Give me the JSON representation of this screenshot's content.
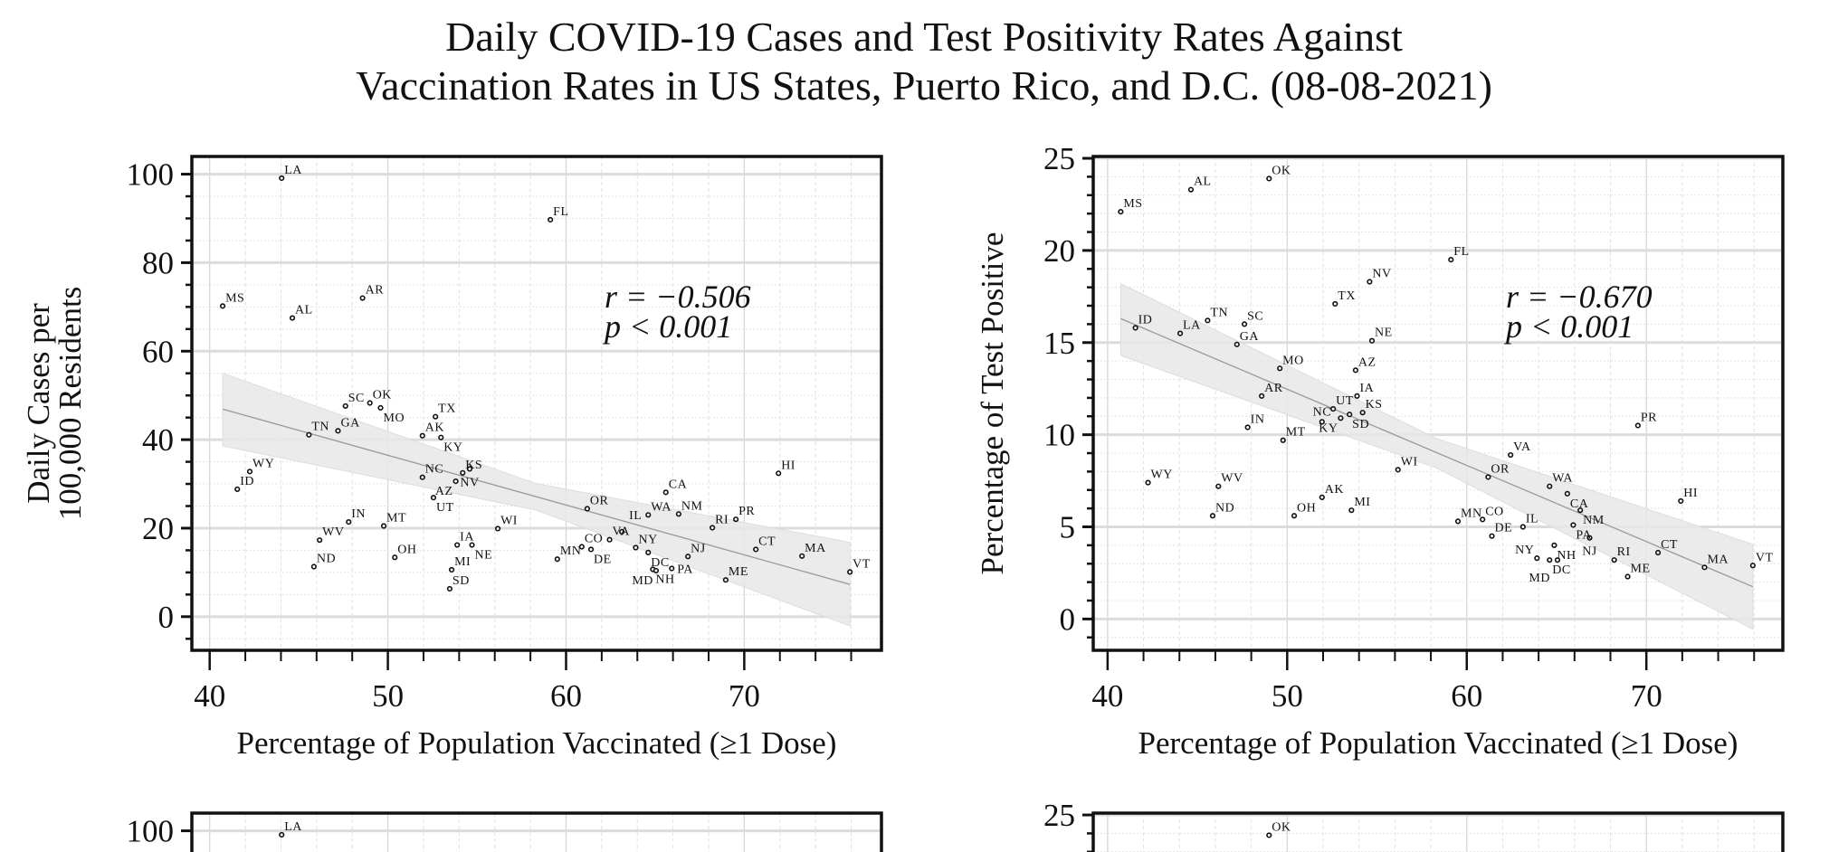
{
  "title_line1": "Daily COVID-19 Cases and Test Positivity Rates Against",
  "title_line2": "Vaccination Rates in US States, Puerto Rico, and D.C. (08-08-2021)",
  "chart_data": [
    {
      "type": "scatter",
      "xlabel": "Percentage of Population Vaccinated (≥1 Dose)",
      "ylabel": [
        "Daily Cases per",
        "100,000 Residents"
      ],
      "xlim": [
        39.0,
        77.7
      ],
      "ylim": [
        -7.6,
        104
      ],
      "xticks": [
        40,
        50,
        60,
        70
      ],
      "yticks": [
        0,
        20,
        40,
        60,
        80,
        100
      ],
      "grid": true,
      "stat_r": "r = −0.506",
      "stat_p": "p < 0.001",
      "fit": {
        "x": [
          40.73,
          58.3,
          75.93
        ],
        "y": [
          46.9,
          27.1,
          7.3
        ],
        "ci_low": [
          38.6,
          24.1,
          -2.1
        ],
        "ci_high": [
          55.0,
          30.1,
          16.8
        ]
      },
      "colors": {
        "points": "#111111",
        "fit": "#999999",
        "band": "#e8e8e8"
      },
      "points": [
        {
          "label": "LA",
          "x": 44.04,
          "y": 99.1
        },
        {
          "label": "FL",
          "x": 59.12,
          "y": 89.7
        },
        {
          "label": "MS",
          "x": 40.73,
          "y": 70.2
        },
        {
          "label": "AL",
          "x": 44.64,
          "y": 67.5
        },
        {
          "label": "AR",
          "x": 48.58,
          "y": 72.0
        },
        {
          "label": "SC",
          "x": 47.62,
          "y": 47.6
        },
        {
          "label": "OK",
          "x": 48.99,
          "y": 48.3
        },
        {
          "label": "MO",
          "x": 49.59,
          "y": 47.2
        },
        {
          "label": "TX",
          "x": 52.67,
          "y": 45.2
        },
        {
          "label": "TN",
          "x": 45.57,
          "y": 41.1
        },
        {
          "label": "GA",
          "x": 47.2,
          "y": 42.0
        },
        {
          "label": "AK",
          "x": 51.94,
          "y": 40.9
        },
        {
          "label": "KY",
          "x": 52.98,
          "y": 40.5
        },
        {
          "label": "WY",
          "x": 42.25,
          "y": 32.8
        },
        {
          "label": "ID",
          "x": 41.55,
          "y": 28.8
        },
        {
          "label": "NC",
          "x": 51.94,
          "y": 31.5
        },
        {
          "label": "KS",
          "x": 54.2,
          "y": 32.5
        },
        {
          "label": "NV",
          "x": 54.59,
          "y": 33.4
        },
        {
          "label": "AZ",
          "x": 53.81,
          "y": 30.6
        },
        {
          "label": "UT",
          "x": 52.56,
          "y": 26.9
        },
        {
          "label": "HI",
          "x": 71.92,
          "y": 32.4
        },
        {
          "label": "CA",
          "x": 65.6,
          "y": 28.1
        },
        {
          "label": "OR",
          "x": 61.19,
          "y": 24.4
        },
        {
          "label": "WA",
          "x": 64.61,
          "y": 23.0
        },
        {
          "label": "NM",
          "x": 66.32,
          "y": 23.2
        },
        {
          "label": "RI",
          "x": 68.21,
          "y": 20.1
        },
        {
          "label": "PR",
          "x": 69.53,
          "y": 22.0
        },
        {
          "label": "IN",
          "x": 47.8,
          "y": 21.4
        },
        {
          "label": "MT",
          "x": 49.77,
          "y": 20.5
        },
        {
          "label": "WI",
          "x": 56.17,
          "y": 19.9
        },
        {
          "label": "WV",
          "x": 46.17,
          "y": 17.3
        },
        {
          "label": "IA",
          "x": 53.89,
          "y": 16.2
        },
        {
          "label": "NE",
          "x": 54.72,
          "y": 16.2
        },
        {
          "label": "VA",
          "x": 62.44,
          "y": 17.4
        },
        {
          "label": "IL",
          "x": 63.13,
          "y": 19.2
        },
        {
          "label": "CO",
          "x": 60.88,
          "y": 15.8
        },
        {
          "label": "DE",
          "x": 61.4,
          "y": 15.2
        },
        {
          "label": "NY",
          "x": 63.91,
          "y": 15.6
        },
        {
          "label": "DC",
          "x": 64.61,
          "y": 14.5
        },
        {
          "label": "NJ",
          "x": 66.84,
          "y": 13.6
        },
        {
          "label": "CT",
          "x": 70.65,
          "y": 15.2
        },
        {
          "label": "MA",
          "x": 73.24,
          "y": 13.7
        },
        {
          "label": "ND",
          "x": 45.85,
          "y": 11.3
        },
        {
          "label": "OH",
          "x": 50.39,
          "y": 13.4
        },
        {
          "label": "MI",
          "x": 53.58,
          "y": 10.6
        },
        {
          "label": "SD",
          "x": 53.47,
          "y": 6.3
        },
        {
          "label": "MN",
          "x": 59.51,
          "y": 13.0
        },
        {
          "label": "NH",
          "x": 64.87,
          "y": 10.7
        },
        {
          "label": "MD",
          "x": 65.05,
          "y": 10.4
        },
        {
          "label": "PA",
          "x": 65.93,
          "y": 10.9
        },
        {
          "label": "ME",
          "x": 68.96,
          "y": 8.3
        },
        {
          "label": "VT",
          "x": 75.93,
          "y": 10.1
        }
      ]
    },
    {
      "type": "scatter",
      "xlabel": "Percentage of Population Vaccinated (≥1 Dose)",
      "ylabel": [
        "Percentage of Test Positive"
      ],
      "xlim": [
        39.2,
        77.6
      ],
      "ylim": [
        -1.7,
        25.1
      ],
      "xticks": [
        40,
        50,
        60,
        70
      ],
      "yticks": [
        0,
        5,
        10,
        15,
        20,
        25
      ],
      "grid": true,
      "stat_r": "r = −0.670",
      "stat_p": "p < 0.001",
      "fit": {
        "x": [
          40.73,
          58.3,
          75.93
        ],
        "y": [
          16.3,
          9.0,
          1.75
        ],
        "ci_low": [
          14.3,
          8.2,
          -0.55
        ],
        "ci_high": [
          18.2,
          9.8,
          4.05
        ]
      },
      "colors": {
        "points": "#111111",
        "fit": "#999999",
        "band": "#e8e8e8"
      },
      "points": [
        {
          "label": "OK",
          "x": 48.99,
          "y": 23.9
        },
        {
          "label": "AL",
          "x": 44.64,
          "y": 23.3
        },
        {
          "label": "MS",
          "x": 40.73,
          "y": 22.1
        },
        {
          "label": "FL",
          "x": 59.12,
          "y": 19.5
        },
        {
          "label": "NV",
          "x": 54.59,
          "y": 18.3
        },
        {
          "label": "TX",
          "x": 52.67,
          "y": 17.1
        },
        {
          "label": "TN",
          "x": 45.57,
          "y": 16.2
        },
        {
          "label": "SC",
          "x": 47.62,
          "y": 16.0
        },
        {
          "label": "ID",
          "x": 41.55,
          "y": 15.8
        },
        {
          "label": "LA",
          "x": 44.04,
          "y": 15.5
        },
        {
          "label": "GA",
          "x": 47.2,
          "y": 14.9
        },
        {
          "label": "NE",
          "x": 54.72,
          "y": 15.1
        },
        {
          "label": "MO",
          "x": 49.59,
          "y": 13.6
        },
        {
          "label": "AZ",
          "x": 53.81,
          "y": 13.5
        },
        {
          "label": "AR",
          "x": 48.58,
          "y": 12.1
        },
        {
          "label": "IA",
          "x": 53.89,
          "y": 12.1
        },
        {
          "label": "UT",
          "x": 52.56,
          "y": 11.4
        },
        {
          "label": "SD",
          "x": 53.47,
          "y": 11.1
        },
        {
          "label": "KY",
          "x": 52.98,
          "y": 10.9
        },
        {
          "label": "KS",
          "x": 54.2,
          "y": 11.2
        },
        {
          "label": "NC",
          "x": 51.94,
          "y": 10.7
        },
        {
          "label": "IN",
          "x": 47.8,
          "y": 10.4
        },
        {
          "label": "PR",
          "x": 69.53,
          "y": 10.5
        },
        {
          "label": "MT",
          "x": 49.77,
          "y": 9.7
        },
        {
          "label": "VA",
          "x": 62.44,
          "y": 8.9
        },
        {
          "label": "WI",
          "x": 56.17,
          "y": 8.1
        },
        {
          "label": "OR",
          "x": 61.19,
          "y": 7.7
        },
        {
          "label": "WY",
          "x": 42.25,
          "y": 7.4
        },
        {
          "label": "WV",
          "x": 46.17,
          "y": 7.2
        },
        {
          "label": "WA",
          "x": 64.61,
          "y": 7.2
        },
        {
          "label": "CA",
          "x": 65.6,
          "y": 6.8
        },
        {
          "label": "AK",
          "x": 51.94,
          "y": 6.6
        },
        {
          "label": "HI",
          "x": 71.92,
          "y": 6.4
        },
        {
          "label": "ND",
          "x": 45.85,
          "y": 5.6
        },
        {
          "label": "OH",
          "x": 50.39,
          "y": 5.6
        },
        {
          "label": "MI",
          "x": 53.58,
          "y": 5.9
        },
        {
          "label": "MN",
          "x": 59.51,
          "y": 5.3
        },
        {
          "label": "CO",
          "x": 60.88,
          "y": 5.4
        },
        {
          "label": "IL",
          "x": 63.13,
          "y": 5.0
        },
        {
          "label": "NM",
          "x": 66.32,
          "y": 5.9
        },
        {
          "label": "PA",
          "x": 65.93,
          "y": 5.1
        },
        {
          "label": "NJ",
          "x": 66.84,
          "y": 4.4
        },
        {
          "label": "NH",
          "x": 64.87,
          "y": 4.0
        },
        {
          "label": "DE",
          "x": 61.4,
          "y": 4.5
        },
        {
          "label": "NY",
          "x": 63.91,
          "y": 3.3
        },
        {
          "label": "DC",
          "x": 64.61,
          "y": 3.2
        },
        {
          "label": "MD",
          "x": 65.05,
          "y": 3.2
        },
        {
          "label": "RI",
          "x": 68.21,
          "y": 3.2
        },
        {
          "label": "CT",
          "x": 70.65,
          "y": 3.6
        },
        {
          "label": "ME",
          "x": 68.96,
          "y": 2.3
        },
        {
          "label": "MA",
          "x": 73.24,
          "y": 2.8
        },
        {
          "label": "VT",
          "x": 75.93,
          "y": 2.9
        }
      ]
    }
  ]
}
